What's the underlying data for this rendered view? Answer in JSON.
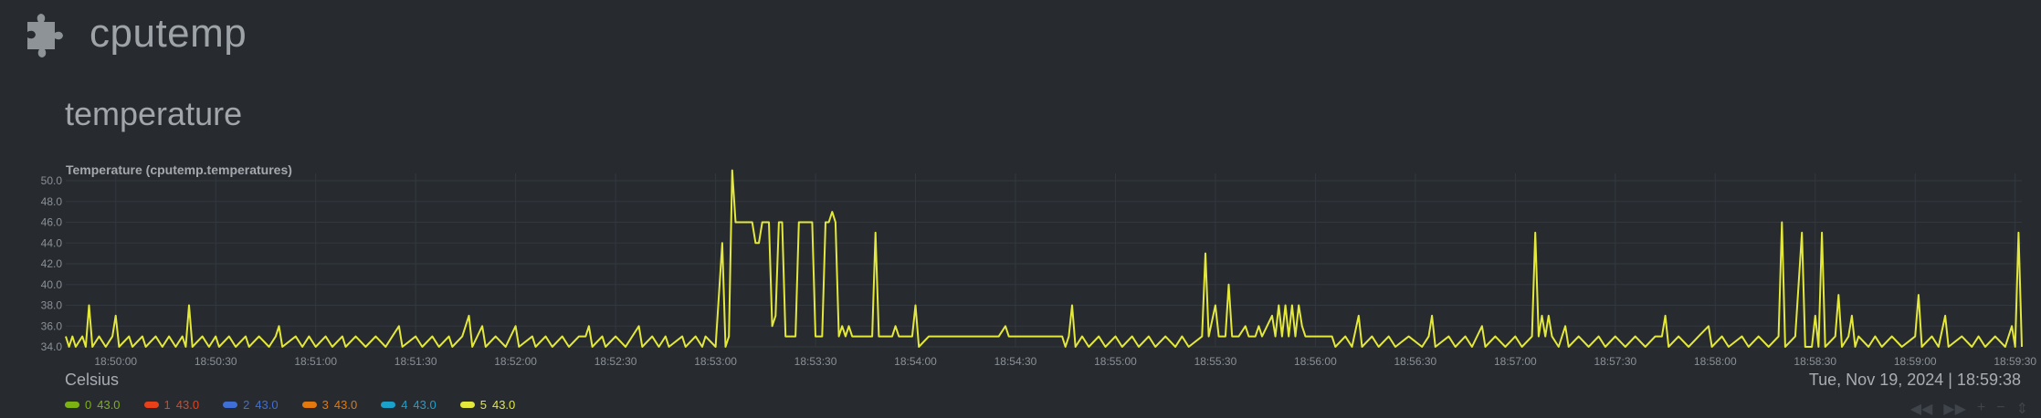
{
  "header": {
    "title": "cputemp",
    "icon": "puzzle-icon"
  },
  "section": {
    "title": "temperature"
  },
  "chart_data": {
    "type": "line",
    "title": "Temperature (cputemp.temperatures)",
    "units": "Celsius",
    "ylim": [
      34,
      50
    ],
    "yticks": [
      "34.0",
      "36.0",
      "38.0",
      "40.0",
      "42.0",
      "44.0",
      "46.0",
      "48.0",
      "50.0"
    ],
    "xticks": [
      "18:50:00",
      "18:50:30",
      "18:51:00",
      "18:51:30",
      "18:52:00",
      "18:52:30",
      "18:53:00",
      "18:53:30",
      "18:54:00",
      "18:54:30",
      "18:55:00",
      "18:55:30",
      "18:56:00",
      "18:56:30",
      "18:57:00",
      "18:57:30",
      "18:58:00",
      "18:58:30",
      "18:59:00",
      "18:59:30"
    ],
    "x_start": "18:49:45",
    "x_end": "18:59:32",
    "grid": true,
    "series": [
      {
        "name": "0",
        "value": "43.0",
        "color": "#7cb212"
      },
      {
        "name": "1",
        "value": "43.0",
        "color": "#e8411a"
      },
      {
        "name": "2",
        "value": "43.0",
        "color": "#3e6ed6"
      },
      {
        "name": "3",
        "value": "43.0",
        "color": "#e2780e"
      },
      {
        "name": "4",
        "value": "43.0",
        "color": "#1aa1cc"
      },
      {
        "name": "5",
        "value": "43.0",
        "color": "#e3e83a",
        "points": [
          [
            "18:49:45",
            35
          ],
          [
            "18:49:46",
            34
          ],
          [
            "18:49:47",
            35
          ],
          [
            "18:49:48",
            34
          ],
          [
            "18:49:50",
            35
          ],
          [
            "18:49:51",
            34
          ],
          [
            "18:49:52",
            38
          ],
          [
            "18:49:53",
            34
          ],
          [
            "18:49:55",
            35
          ],
          [
            "18:49:57",
            34
          ],
          [
            "18:49:59",
            35
          ],
          [
            "18:50:00",
            37
          ],
          [
            "18:50:01",
            34
          ],
          [
            "18:50:04",
            35
          ],
          [
            "18:50:05",
            34
          ],
          [
            "18:50:08",
            35
          ],
          [
            "18:50:09",
            34
          ],
          [
            "18:50:12",
            35
          ],
          [
            "18:50:14",
            34
          ],
          [
            "18:50:16",
            35
          ],
          [
            "18:50:18",
            34
          ],
          [
            "18:50:20",
            35
          ],
          [
            "18:50:21",
            34
          ],
          [
            "18:50:22",
            38
          ],
          [
            "18:50:23",
            34
          ],
          [
            "18:50:26",
            35
          ],
          [
            "18:50:28",
            34
          ],
          [
            "18:50:30",
            35
          ],
          [
            "18:50:31",
            34
          ],
          [
            "18:50:34",
            35
          ],
          [
            "18:50:36",
            34
          ],
          [
            "18:50:39",
            35
          ],
          [
            "18:50:40",
            34
          ],
          [
            "18:50:43",
            35
          ],
          [
            "18:50:46",
            34
          ],
          [
            "18:50:48",
            35
          ],
          [
            "18:50:49",
            36
          ],
          [
            "18:50:50",
            34
          ],
          [
            "18:50:54",
            35
          ],
          [
            "18:50:56",
            34
          ],
          [
            "18:50:58",
            35
          ],
          [
            "18:51:00",
            34
          ],
          [
            "18:51:03",
            35
          ],
          [
            "18:51:05",
            34
          ],
          [
            "18:51:08",
            35
          ],
          [
            "18:51:09",
            34
          ],
          [
            "18:51:12",
            35
          ],
          [
            "18:51:15",
            34
          ],
          [
            "18:51:18",
            35
          ],
          [
            "18:51:21",
            34
          ],
          [
            "18:51:23",
            35
          ],
          [
            "18:51:25",
            36
          ],
          [
            "18:51:26",
            34
          ],
          [
            "18:51:30",
            35
          ],
          [
            "18:51:32",
            34
          ],
          [
            "18:51:35",
            35
          ],
          [
            "18:51:37",
            34
          ],
          [
            "18:51:40",
            35
          ],
          [
            "18:51:41",
            34
          ],
          [
            "18:51:44",
            35
          ],
          [
            "18:51:46",
            37
          ],
          [
            "18:51:47",
            34
          ],
          [
            "18:51:50",
            36
          ],
          [
            "18:51:51",
            34
          ],
          [
            "18:51:54",
            35
          ],
          [
            "18:51:57",
            34
          ],
          [
            "18:52:00",
            36
          ],
          [
            "18:52:01",
            34
          ],
          [
            "18:52:05",
            35
          ],
          [
            "18:52:06",
            34
          ],
          [
            "18:52:09",
            35
          ],
          [
            "18:52:11",
            34
          ],
          [
            "18:52:14",
            35
          ],
          [
            "18:52:16",
            34
          ],
          [
            "18:52:19",
            35
          ],
          [
            "18:52:21",
            35
          ],
          [
            "18:52:22",
            36
          ],
          [
            "18:52:23",
            34
          ],
          [
            "18:52:26",
            35
          ],
          [
            "18:52:27",
            34
          ],
          [
            "18:52:30",
            35
          ],
          [
            "18:52:33",
            34
          ],
          [
            "18:52:37",
            36
          ],
          [
            "18:52:38",
            34
          ],
          [
            "18:52:41",
            35
          ],
          [
            "18:52:43",
            34
          ],
          [
            "18:52:45",
            35
          ],
          [
            "18:52:46",
            34
          ],
          [
            "18:52:50",
            35
          ],
          [
            "18:52:51",
            34
          ],
          [
            "18:52:54",
            35
          ],
          [
            "18:52:56",
            34
          ],
          [
            "18:52:57",
            35
          ],
          [
            "18:53:00",
            34
          ],
          [
            "18:53:02",
            44
          ],
          [
            "18:53:03",
            34
          ],
          [
            "18:53:04",
            35
          ],
          [
            "18:53:05",
            51
          ],
          [
            "18:53:06",
            46
          ],
          [
            "18:53:11",
            46
          ],
          [
            "18:53:12",
            44
          ],
          [
            "18:53:13",
            44
          ],
          [
            "18:53:14",
            46
          ],
          [
            "18:53:16",
            46
          ],
          [
            "18:53:17",
            36
          ],
          [
            "18:53:18",
            37
          ],
          [
            "18:53:19",
            46
          ],
          [
            "18:53:20",
            46
          ],
          [
            "18:53:21",
            35
          ],
          [
            "18:53:24",
            35
          ],
          [
            "18:53:25",
            46
          ],
          [
            "18:53:29",
            46
          ],
          [
            "18:53:30",
            35
          ],
          [
            "18:53:32",
            35
          ],
          [
            "18:53:33",
            46
          ],
          [
            "18:53:34",
            46
          ],
          [
            "18:53:35",
            47
          ],
          [
            "18:53:36",
            46
          ],
          [
            "18:53:37",
            35
          ],
          [
            "18:53:38",
            36
          ],
          [
            "18:53:39",
            35
          ],
          [
            "18:53:40",
            36
          ],
          [
            "18:53:41",
            35
          ],
          [
            "18:53:45",
            35
          ],
          [
            "18:53:47",
            35
          ],
          [
            "18:53:48",
            45
          ],
          [
            "18:53:49",
            35
          ],
          [
            "18:53:53",
            35
          ],
          [
            "18:53:54",
            36
          ],
          [
            "18:53:55",
            35
          ],
          [
            "18:53:59",
            35
          ],
          [
            "18:54:00",
            38
          ],
          [
            "18:54:01",
            34
          ],
          [
            "18:54:04",
            35
          ],
          [
            "18:54:08",
            35
          ],
          [
            "18:54:13",
            35
          ],
          [
            "18:54:18",
            35
          ],
          [
            "18:54:25",
            35
          ],
          [
            "18:54:27",
            36
          ],
          [
            "18:54:28",
            35
          ],
          [
            "18:54:35",
            35
          ],
          [
            "18:54:40",
            35
          ],
          [
            "18:54:44",
            35
          ],
          [
            "18:54:45",
            34
          ],
          [
            "18:54:46",
            35
          ],
          [
            "18:54:47",
            38
          ],
          [
            "18:54:48",
            34
          ],
          [
            "18:54:50",
            35
          ],
          [
            "18:54:52",
            34
          ],
          [
            "18:54:55",
            35
          ],
          [
            "18:54:57",
            34
          ],
          [
            "18:55:00",
            35
          ],
          [
            "18:55:02",
            34
          ],
          [
            "18:55:05",
            35
          ],
          [
            "18:55:07",
            34
          ],
          [
            "18:55:10",
            35
          ],
          [
            "18:55:12",
            34
          ],
          [
            "18:55:15",
            35
          ],
          [
            "18:55:18",
            34
          ],
          [
            "18:55:20",
            35
          ],
          [
            "18:55:22",
            34
          ],
          [
            "18:55:26",
            35
          ],
          [
            "18:55:27",
            43
          ],
          [
            "18:55:28",
            35
          ],
          [
            "18:55:30",
            38
          ],
          [
            "18:55:31",
            35
          ],
          [
            "18:55:33",
            35
          ],
          [
            "18:55:34",
            40
          ],
          [
            "18:55:35",
            35
          ],
          [
            "18:55:37",
            35
          ],
          [
            "18:55:39",
            36
          ],
          [
            "18:55:40",
            35
          ],
          [
            "18:55:42",
            35
          ],
          [
            "18:55:43",
            36
          ],
          [
            "18:55:44",
            35
          ],
          [
            "18:55:47",
            37
          ],
          [
            "18:55:48",
            35
          ],
          [
            "18:55:49",
            38
          ],
          [
            "18:55:50",
            35
          ],
          [
            "18:55:51",
            38
          ],
          [
            "18:55:52",
            35
          ],
          [
            "18:55:53",
            38
          ],
          [
            "18:55:54",
            35
          ],
          [
            "18:55:55",
            38
          ],
          [
            "18:55:56",
            36
          ],
          [
            "18:55:57",
            35
          ],
          [
            "18:56:01",
            35
          ],
          [
            "18:56:05",
            35
          ],
          [
            "18:56:06",
            34
          ],
          [
            "18:56:09",
            35
          ],
          [
            "18:56:11",
            34
          ],
          [
            "18:56:13",
            37
          ],
          [
            "18:56:14",
            34
          ],
          [
            "18:56:17",
            35
          ],
          [
            "18:56:19",
            34
          ],
          [
            "18:56:22",
            35
          ],
          [
            "18:56:24",
            34
          ],
          [
            "18:56:28",
            35
          ],
          [
            "18:56:32",
            34
          ],
          [
            "18:56:34",
            35
          ],
          [
            "18:56:35",
            37
          ],
          [
            "18:56:36",
            34
          ],
          [
            "18:56:40",
            35
          ],
          [
            "18:56:42",
            34
          ],
          [
            "18:56:45",
            35
          ],
          [
            "18:56:47",
            34
          ],
          [
            "18:56:50",
            36
          ],
          [
            "18:56:51",
            34
          ],
          [
            "18:56:54",
            35
          ],
          [
            "18:56:57",
            34
          ],
          [
            "18:57:00",
            35
          ],
          [
            "18:57:02",
            34
          ],
          [
            "18:57:05",
            35
          ],
          [
            "18:57:06",
            45
          ],
          [
            "18:57:07",
            35
          ],
          [
            "18:57:08",
            37
          ],
          [
            "18:57:09",
            35
          ],
          [
            "18:57:10",
            37
          ],
          [
            "18:57:11",
            35
          ],
          [
            "18:57:13",
            34
          ],
          [
            "18:57:15",
            36
          ],
          [
            "18:57:16",
            34
          ],
          [
            "18:57:19",
            35
          ],
          [
            "18:57:22",
            34
          ],
          [
            "18:57:25",
            35
          ],
          [
            "18:57:27",
            34
          ],
          [
            "18:57:30",
            35
          ],
          [
            "18:57:33",
            34
          ],
          [
            "18:57:36",
            35
          ],
          [
            "18:57:39",
            34
          ],
          [
            "18:57:42",
            35
          ],
          [
            "18:57:44",
            35
          ],
          [
            "18:57:45",
            37
          ],
          [
            "18:57:46",
            34
          ],
          [
            "18:57:49",
            35
          ],
          [
            "18:57:52",
            34
          ],
          [
            "18:57:55",
            35
          ],
          [
            "18:57:58",
            36
          ],
          [
            "18:57:59",
            34
          ],
          [
            "18:58:02",
            35
          ],
          [
            "18:58:04",
            34
          ],
          [
            "18:58:08",
            35
          ],
          [
            "18:58:10",
            34
          ],
          [
            "18:58:13",
            35
          ],
          [
            "18:58:16",
            34
          ],
          [
            "18:58:19",
            35
          ],
          [
            "18:58:20",
            46
          ],
          [
            "18:58:21",
            34
          ],
          [
            "18:58:24",
            35
          ],
          [
            "18:58:26",
            45
          ],
          [
            "18:58:27",
            34
          ],
          [
            "18:58:29",
            34
          ],
          [
            "18:58:30",
            37
          ],
          [
            "18:58:31",
            34
          ],
          [
            "18:58:32",
            45
          ],
          [
            "18:58:33",
            34
          ],
          [
            "18:58:36",
            35
          ],
          [
            "18:58:37",
            39
          ],
          [
            "18:58:38",
            34
          ],
          [
            "18:58:40",
            35
          ],
          [
            "18:58:41",
            37
          ],
          [
            "18:58:42",
            34
          ],
          [
            "18:58:43",
            35
          ],
          [
            "18:58:46",
            34
          ],
          [
            "18:58:48",
            35
          ],
          [
            "18:58:50",
            34
          ],
          [
            "18:58:53",
            35
          ],
          [
            "18:58:56",
            34
          ],
          [
            "18:59:00",
            35
          ],
          [
            "18:59:01",
            39
          ],
          [
            "18:59:02",
            34
          ],
          [
            "18:59:05",
            35
          ],
          [
            "18:59:07",
            34
          ],
          [
            "18:59:09",
            37
          ],
          [
            "18:59:10",
            34
          ],
          [
            "18:59:14",
            35
          ],
          [
            "18:59:17",
            34
          ],
          [
            "18:59:19",
            35
          ],
          [
            "18:59:21",
            34
          ],
          [
            "18:59:24",
            35
          ],
          [
            "18:59:27",
            34
          ],
          [
            "18:59:29",
            36
          ],
          [
            "18:59:30",
            34
          ],
          [
            "18:59:31",
            45
          ],
          [
            "18:59:32",
            34
          ]
        ]
      }
    ]
  },
  "status": {
    "datetime": "Tue, Nov 19, 2024 | 18:59:38"
  },
  "nav": {
    "back": "◀◀",
    "forward": "▶▶",
    "zoom_in": "+",
    "zoom_out": "−",
    "resize": "⇕"
  }
}
